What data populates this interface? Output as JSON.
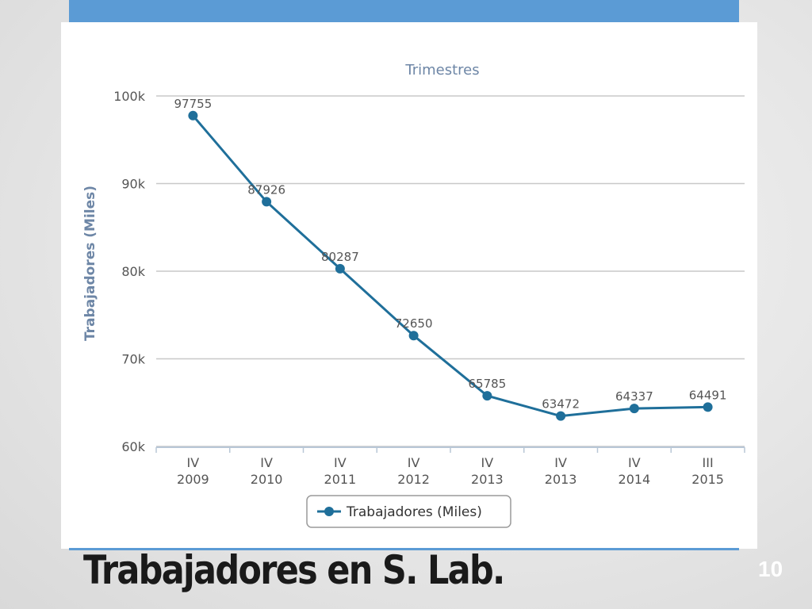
{
  "slide": {
    "title": "Trabajadores en S. Lab.",
    "number": "10"
  },
  "colors": {
    "accent_bar": "#5b9bd5",
    "series": "#1f6f9a",
    "axis_title": "#6d86a6",
    "grid": "#c8c8c8"
  },
  "chart_data": {
    "type": "line",
    "title": "Trimestres",
    "ylabel": "Trabajadores (Miles)",
    "ylim": [
      60000,
      100000
    ],
    "yticks": [
      "60k",
      "70k",
      "80k",
      "90k",
      "100k"
    ],
    "categories": [
      [
        "IV",
        "2009"
      ],
      [
        "IV",
        "2010"
      ],
      [
        "IV",
        "2011"
      ],
      [
        "IV",
        "2012"
      ],
      [
        "IV",
        "2013"
      ],
      [
        "IV",
        "2013"
      ],
      [
        "IV",
        "2014"
      ],
      [
        "III",
        "2015"
      ]
    ],
    "series": [
      {
        "name": "Trabajadores (Miles)",
        "values": [
          97755,
          87926,
          80287,
          72650,
          65785,
          63472,
          64337,
          64491
        ]
      }
    ],
    "grid": true,
    "legend": "bottom-center"
  }
}
